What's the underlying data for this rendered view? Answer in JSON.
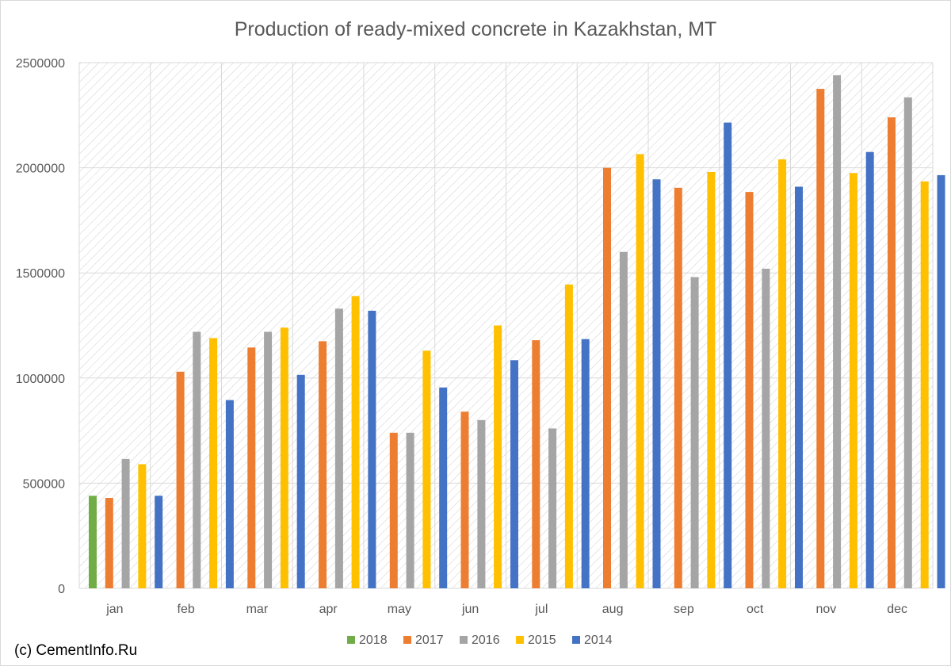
{
  "credit": "(c) CementInfo.Ru",
  "chart_data": {
    "type": "bar",
    "title": "Production of ready-mixed concrete in Kazakhstan, MT",
    "xlabel": "",
    "ylabel": "",
    "ylim": [
      0,
      2500000
    ],
    "yticks": [
      {
        "value": 0,
        "label": "0"
      },
      {
        "value": 500000,
        "label": "500000"
      },
      {
        "value": 1000000,
        "label": "1000000"
      },
      {
        "value": 1500000,
        "label": "1500000"
      },
      {
        "value": 2000000,
        "label": "2000000"
      },
      {
        "value": 2500000,
        "label": "2500000"
      }
    ],
    "grid": true,
    "legend": "bottom",
    "categories": [
      "jan",
      "feb",
      "mar",
      "apr",
      "may",
      "jun",
      "jul",
      "aug",
      "sep",
      "oct",
      "nov",
      "dec"
    ],
    "series": [
      {
        "name": "2018",
        "color": "#70ad47",
        "values": [
          440000,
          null,
          null,
          null,
          null,
          null,
          null,
          null,
          null,
          null,
          null,
          null
        ]
      },
      {
        "name": "2017",
        "color": "#ed7d31",
        "values": [
          430000,
          1030000,
          1145000,
          1175000,
          740000,
          840000,
          1180000,
          2000000,
          1905000,
          1885000,
          2375000,
          2240000
        ]
      },
      {
        "name": "2016",
        "color": "#a5a5a5",
        "values": [
          615000,
          1220000,
          1220000,
          1330000,
          740000,
          800000,
          760000,
          1600000,
          1480000,
          1520000,
          2440000,
          2335000
        ]
      },
      {
        "name": "2015",
        "color": "#ffc000",
        "values": [
          590000,
          1190000,
          1240000,
          1390000,
          1130000,
          1250000,
          1445000,
          2065000,
          1980000,
          2040000,
          1975000,
          1935000
        ]
      },
      {
        "name": "2014",
        "color": "#4472c4",
        "values": [
          440000,
          895000,
          1015000,
          1320000,
          955000,
          1085000,
          1185000,
          1945000,
          2215000,
          1910000,
          2075000,
          1965000
        ]
      }
    ]
  }
}
